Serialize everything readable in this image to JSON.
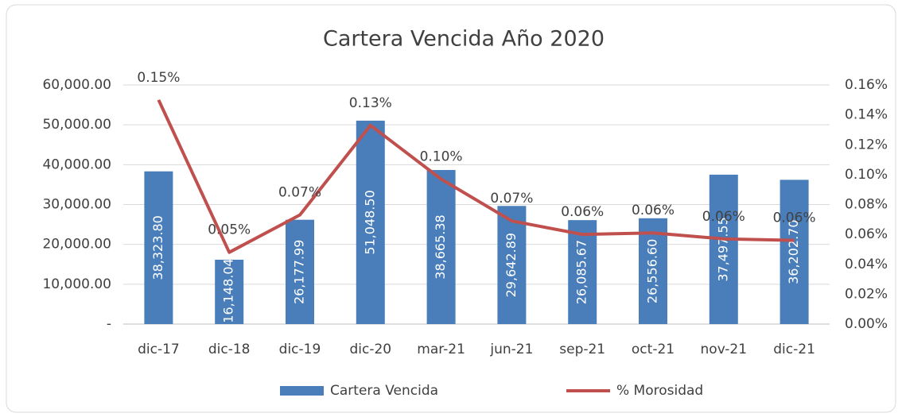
{
  "chart_data": {
    "type": "bar",
    "title": "Cartera Vencida Año 2020",
    "categories": [
      "dic-17",
      "dic-18",
      "dic-19",
      "dic-20",
      "mar-21",
      "jun-21",
      "sep-21",
      "oct-21",
      "nov-21",
      "dic-21"
    ],
    "series": [
      {
        "name": "Cartera Vencida",
        "type": "bar",
        "color": "#4a7ebb",
        "values": [
          38323.8,
          16148.04,
          26177.99,
          51048.5,
          38665.38,
          29642.89,
          26085.67,
          26556.6,
          37497.55,
          36202.7
        ],
        "value_labels": [
          "38,323.80",
          "16,148.04",
          "26,177.99",
          "51,048.50",
          "38,665.38",
          "29,642.89",
          "26,085.67",
          "26,556.60",
          "37,497.55",
          "36,202.70"
        ]
      },
      {
        "name": "% Morosidad",
        "type": "line",
        "axis": "y2",
        "color": "#c0504d",
        "values": [
          0.15,
          0.048,
          0.073,
          0.133,
          0.097,
          0.069,
          0.06,
          0.061,
          0.057,
          0.056
        ],
        "value_labels": [
          "0.15%",
          "0.05%",
          "0.07%",
          "0.13%",
          "0.10%",
          "0.07%",
          "0.06%",
          "0.06%",
          "0.06%",
          "0.06%"
        ]
      }
    ],
    "ylim": [
      0,
      60000
    ],
    "yticks": [
      {
        "value": 0,
        "label": "-"
      },
      {
        "value": 10000,
        "label": "10,000.00"
      },
      {
        "value": 20000,
        "label": "20,000.00"
      },
      {
        "value": 30000,
        "label": "30,000.00"
      },
      {
        "value": 40000,
        "label": "40,000.00"
      },
      {
        "value": 50000,
        "label": "50,000.00"
      },
      {
        "value": 60000,
        "label": "60,000.00"
      }
    ],
    "y2lim": [
      0,
      0.16
    ],
    "y2ticks": [
      {
        "value": 0,
        "label": "0.00%"
      },
      {
        "value": 0.02,
        "label": "0.02%"
      },
      {
        "value": 0.04,
        "label": "0.04%"
      },
      {
        "value": 0.06,
        "label": "0.06%"
      },
      {
        "value": 0.08,
        "label": "0.08%"
      },
      {
        "value": 0.1,
        "label": "0.10%"
      },
      {
        "value": 0.12,
        "label": "0.12%"
      },
      {
        "value": 0.14,
        "label": "0.14%"
      },
      {
        "value": 0.16,
        "label": "0.16%"
      }
    ],
    "grid": true,
    "legend": "bottom"
  }
}
